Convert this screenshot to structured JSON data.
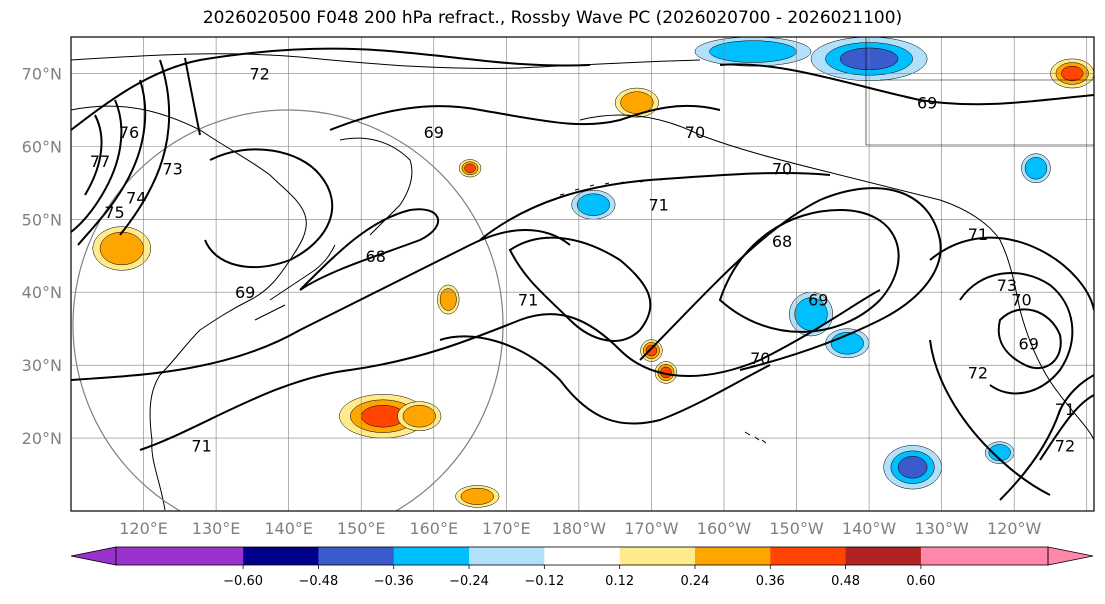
{
  "title": "2026020500 F048 200 hPa refract., Rossby Wave PC (2026020700 - 2026021100)",
  "map": {
    "lon_range": [
      110,
      251
    ],
    "lat_range": [
      10,
      75
    ],
    "lat_labels": [
      "20°N",
      "30°N",
      "40°N",
      "50°N",
      "60°N",
      "70°N"
    ],
    "lon_labels": [
      "120°E",
      "130°E",
      "140°E",
      "150°E",
      "160°E",
      "170°E",
      "180°W",
      "170°W",
      "160°W",
      "150°W",
      "140°W",
      "130°W",
      "120°W"
    ],
    "contour_labels": [
      {
        "text": "69",
        "lon": 160,
        "lat": 62
      },
      {
        "text": "70",
        "lon": 196,
        "lat": 62
      },
      {
        "text": "69",
        "lon": 228,
        "lat": 66
      },
      {
        "text": "72",
        "lon": 136,
        "lat": 70
      },
      {
        "text": "76",
        "lon": 118,
        "lat": 62
      },
      {
        "text": "77",
        "lon": 114,
        "lat": 58
      },
      {
        "text": "73",
        "lon": 124,
        "lat": 57
      },
      {
        "text": "74",
        "lon": 119,
        "lat": 53
      },
      {
        "text": "75",
        "lon": 116,
        "lat": 51
      },
      {
        "text": "68",
        "lon": 152,
        "lat": 45
      },
      {
        "text": "69",
        "lon": 134,
        "lat": 40
      },
      {
        "text": "71",
        "lon": 173,
        "lat": 39
      },
      {
        "text": "70",
        "lon": 208,
        "lat": 57
      },
      {
        "text": "71",
        "lon": 191,
        "lat": 52
      },
      {
        "text": "68",
        "lon": 208,
        "lat": 47
      },
      {
        "text": "69",
        "lon": 213,
        "lat": 39
      },
      {
        "text": "70",
        "lon": 205,
        "lat": 31
      },
      {
        "text": "71",
        "lon": 235,
        "lat": 48
      },
      {
        "text": "73",
        "lon": 239,
        "lat": 41
      },
      {
        "text": "70",
        "lon": 241,
        "lat": 39
      },
      {
        "text": "69",
        "lon": 242,
        "lat": 33
      },
      {
        "text": "72",
        "lon": 235,
        "lat": 29
      },
      {
        "text": "71",
        "lon": 247,
        "lat": 24
      },
      {
        "text": "72",
        "lon": 247,
        "lat": 19
      },
      {
        "text": "71",
        "lon": 128,
        "lat": 19
      }
    ],
    "colors": {
      "contour": "#000000",
      "grid": "#808080",
      "coast": "#000000",
      "circle": "#808080"
    }
  },
  "colorbar": {
    "ticks": [
      "−0.60",
      "−0.48",
      "−0.36",
      "−0.24",
      "−0.12",
      "0.12",
      "0.24",
      "0.36",
      "0.48",
      "0.60"
    ],
    "under_color": "#9932cc",
    "over_color": "#ff88aa",
    "colors": [
      "#00008b",
      "#3a5bcc",
      "#00bfff",
      "#b0e0fa",
      "#ffffff",
      "#ffeb8c",
      "#ffa500",
      "#ff4500",
      "#b22222"
    ]
  },
  "anomaly_patches": [
    {
      "lon": 117,
      "lat": 46,
      "rx": 4,
      "ry": 3,
      "value": 0.3
    },
    {
      "lon": 165,
      "lat": 57,
      "rx": 1.5,
      "ry": 1.2,
      "value": 0.4
    },
    {
      "lon": 188,
      "lat": 66,
      "rx": 3,
      "ry": 2,
      "value": 0.3
    },
    {
      "lon": 153,
      "lat": 23,
      "rx": 6,
      "ry": 3,
      "value": 0.45
    },
    {
      "lon": 162,
      "lat": 39,
      "rx": 1.5,
      "ry": 2,
      "value": 0.3
    },
    {
      "lon": 190,
      "lat": 32,
      "rx": 1.5,
      "ry": 1.5,
      "value": 0.45
    },
    {
      "lon": 192,
      "lat": 29,
      "rx": 1.5,
      "ry": 1.5,
      "value": 0.4
    },
    {
      "lon": 166,
      "lat": 12,
      "rx": 3,
      "ry": 1.5,
      "value": 0.3
    },
    {
      "lon": 248,
      "lat": 70,
      "rx": 3,
      "ry": 2,
      "value": 0.4
    },
    {
      "lon": 158,
      "lat": 23,
      "rx": 3,
      "ry": 2,
      "value": 0.25
    },
    {
      "lon": 182,
      "lat": 52,
      "rx": 3,
      "ry": 2,
      "value": -0.3
    },
    {
      "lon": 204,
      "lat": 73,
      "rx": 8,
      "ry": 2,
      "value": -0.3
    },
    {
      "lon": 220,
      "lat": 72,
      "rx": 8,
      "ry": 3,
      "value": -0.4
    },
    {
      "lon": 212,
      "lat": 37,
      "rx": 3,
      "ry": 3,
      "value": -0.35
    },
    {
      "lon": 217,
      "lat": 33,
      "rx": 3,
      "ry": 2,
      "value": -0.3
    },
    {
      "lon": 226,
      "lat": 16,
      "rx": 4,
      "ry": 3,
      "value": -0.45
    },
    {
      "lon": 238,
      "lat": 18,
      "rx": 2,
      "ry": 1.5,
      "value": -0.25
    },
    {
      "lon": 243,
      "lat": 57,
      "rx": 2,
      "ry": 2,
      "value": -0.25
    }
  ]
}
